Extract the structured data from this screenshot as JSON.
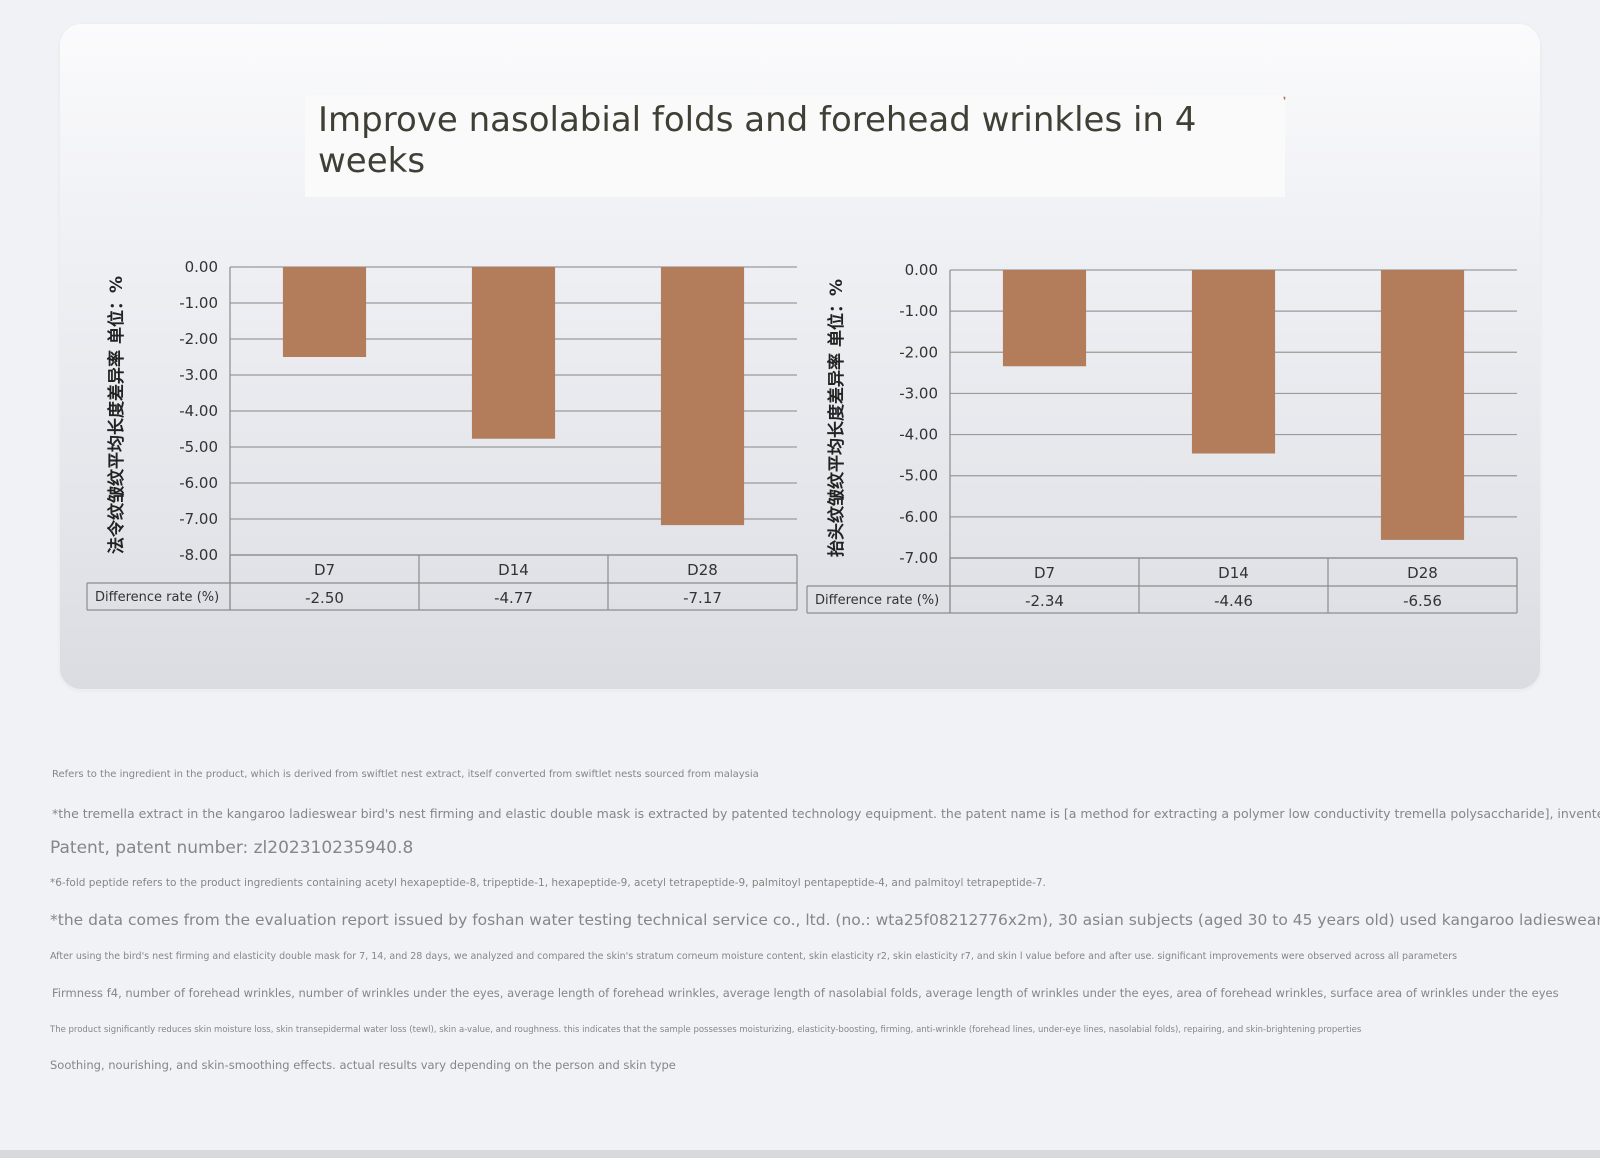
{
  "title": "Improve nasolabial folds and forehead wrinkles in 4 weeks",
  "colors": {
    "bar": "#b37c5a",
    "grid": "#9a9a9a",
    "table_line": "#8c8c8c",
    "text": "#333333"
  },
  "chart_data": [
    {
      "type": "bar",
      "title": "",
      "ylabel": "法令纹皱纹平均长度差异率 单位：%",
      "xlabel": "",
      "categories": [
        "D7",
        "D14",
        "D28"
      ],
      "values": [
        -2.5,
        -4.77,
        -7.17
      ],
      "value_labels": [
        "-2.50",
        "-4.77",
        "-7.17"
      ],
      "ylim": [
        -8.0,
        0.0
      ],
      "yticks": [
        "0.00",
        "-1.00",
        "-2.00",
        "-3.00",
        "-4.00",
        "-5.00",
        "-6.00",
        "-7.00",
        "-8.00"
      ],
      "grid": true,
      "table_row_label": "Difference rate (%)"
    },
    {
      "type": "bar",
      "title": "",
      "ylabel": "抬头纹皱纹平均长度差异率 单位：%",
      "xlabel": "",
      "categories": [
        "D7",
        "D14",
        "D28"
      ],
      "values": [
        -2.34,
        -4.46,
        -6.56
      ],
      "value_labels": [
        "-2.34",
        "-4.46",
        "-6.56"
      ],
      "ylim": [
        -7.0,
        0.0
      ],
      "yticks": [
        "0.00",
        "-1.00",
        "-2.00",
        "-3.00",
        "-4.00",
        "-5.00",
        "-6.00",
        "-7.00"
      ],
      "grid": true,
      "table_row_label": "Difference rate (%)"
    }
  ],
  "footnotes": [
    "Refers to the ingredient in the product, which is derived from swiftlet nest extract, itself converted from swiftlet nests sourced from malaysia",
    "*the tremella extract in the kangaroo ladieswear bird's nest firming and elastic double mask is extracted by patented technology equipment. the patent name is [a method for extracting a polymer low conductivity tremella polysaccharide], invented in china",
    "Patent, patent number: zl202310235940.8",
    "*6-fold peptide refers to the product ingredients containing acetyl hexapeptide-8, tripeptide-1, hexapeptide-9, acetyl tetrapeptide-9, palmitoyl pentapeptide-4, and palmitoyl tetrapeptide-7.",
    "*the data comes from the evaluation report issued by foshan water testing technical service co., ltd. (no.: wta25f08212776x2m), 30 asian subjects (aged 30 to 45 years old) used kangaroo ladieswear",
    "After using the bird's nest firming and elasticity double mask for 7, 14, and 28 days, we analyzed and compared the skin's stratum corneum moisture content, skin elasticity r2, skin elasticity r7, and skin l value before and after use. significant improvements were observed across all parameters",
    "Firmness f4, number of forehead wrinkles, number of wrinkles under the eyes, average length of forehead wrinkles, average length of nasolabial folds, average length of wrinkles under the eyes, area of forehead wrinkles, surface area of wrinkles under the eyes",
    "The product significantly reduces skin moisture loss, skin transepidermal water loss (tewl), skin a-value, and roughness. this indicates that the sample possesses moisturizing, elasticity-boosting, firming, anti-wrinkle (forehead lines, under-eye lines, nasolabial folds), repairing, and skin-brightening properties",
    "Soothing, nourishing, and skin-smoothing effects. actual results vary depending on the person and skin type"
  ]
}
